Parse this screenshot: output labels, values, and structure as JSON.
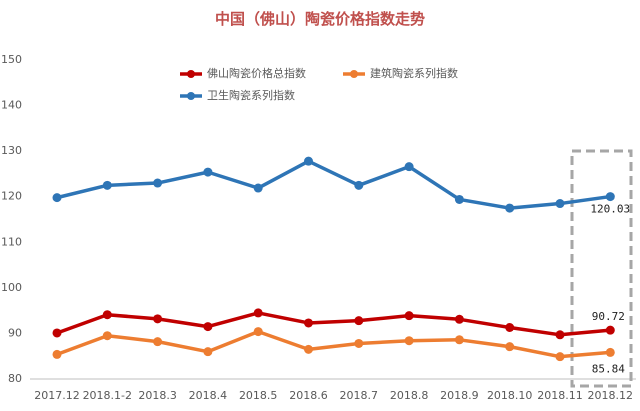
{
  "chart_data": {
    "type": "line",
    "title": "中国（佛山）陶瓷价格指数走势",
    "categories": [
      "2017.12",
      "2018.1-2",
      "2018.3",
      "2018.4",
      "2018.5",
      "2018.6",
      "2018.7",
      "2018.8",
      "2018.9",
      "2018.10",
      "2018.11",
      "2018.12"
    ],
    "series": [
      {
        "name": "佛山陶瓷价格总指数",
        "color": "#c00000",
        "values": [
          90.1,
          94.1,
          93.2,
          91.5,
          94.5,
          92.3,
          92.8,
          93.9,
          93.1,
          91.3,
          89.7,
          90.72
        ]
      },
      {
        "name": "建筑陶瓷系列指数",
        "color": "#ed7d31",
        "values": [
          85.4,
          89.5,
          88.2,
          86.0,
          90.4,
          86.5,
          87.8,
          88.4,
          88.6,
          87.1,
          84.9,
          85.84
        ]
      },
      {
        "name": "卫生陶瓷系列指数",
        "color": "#2e75b6",
        "values": [
          119.8,
          122.5,
          123.0,
          125.4,
          121.9,
          127.8,
          122.5,
          126.6,
          119.4,
          117.5,
          118.5,
          120.03
        ]
      }
    ],
    "ylim": [
      80,
      150
    ],
    "yticks": [
      80,
      90,
      100,
      110,
      120,
      130,
      140,
      150
    ],
    "grid": false
  }
}
